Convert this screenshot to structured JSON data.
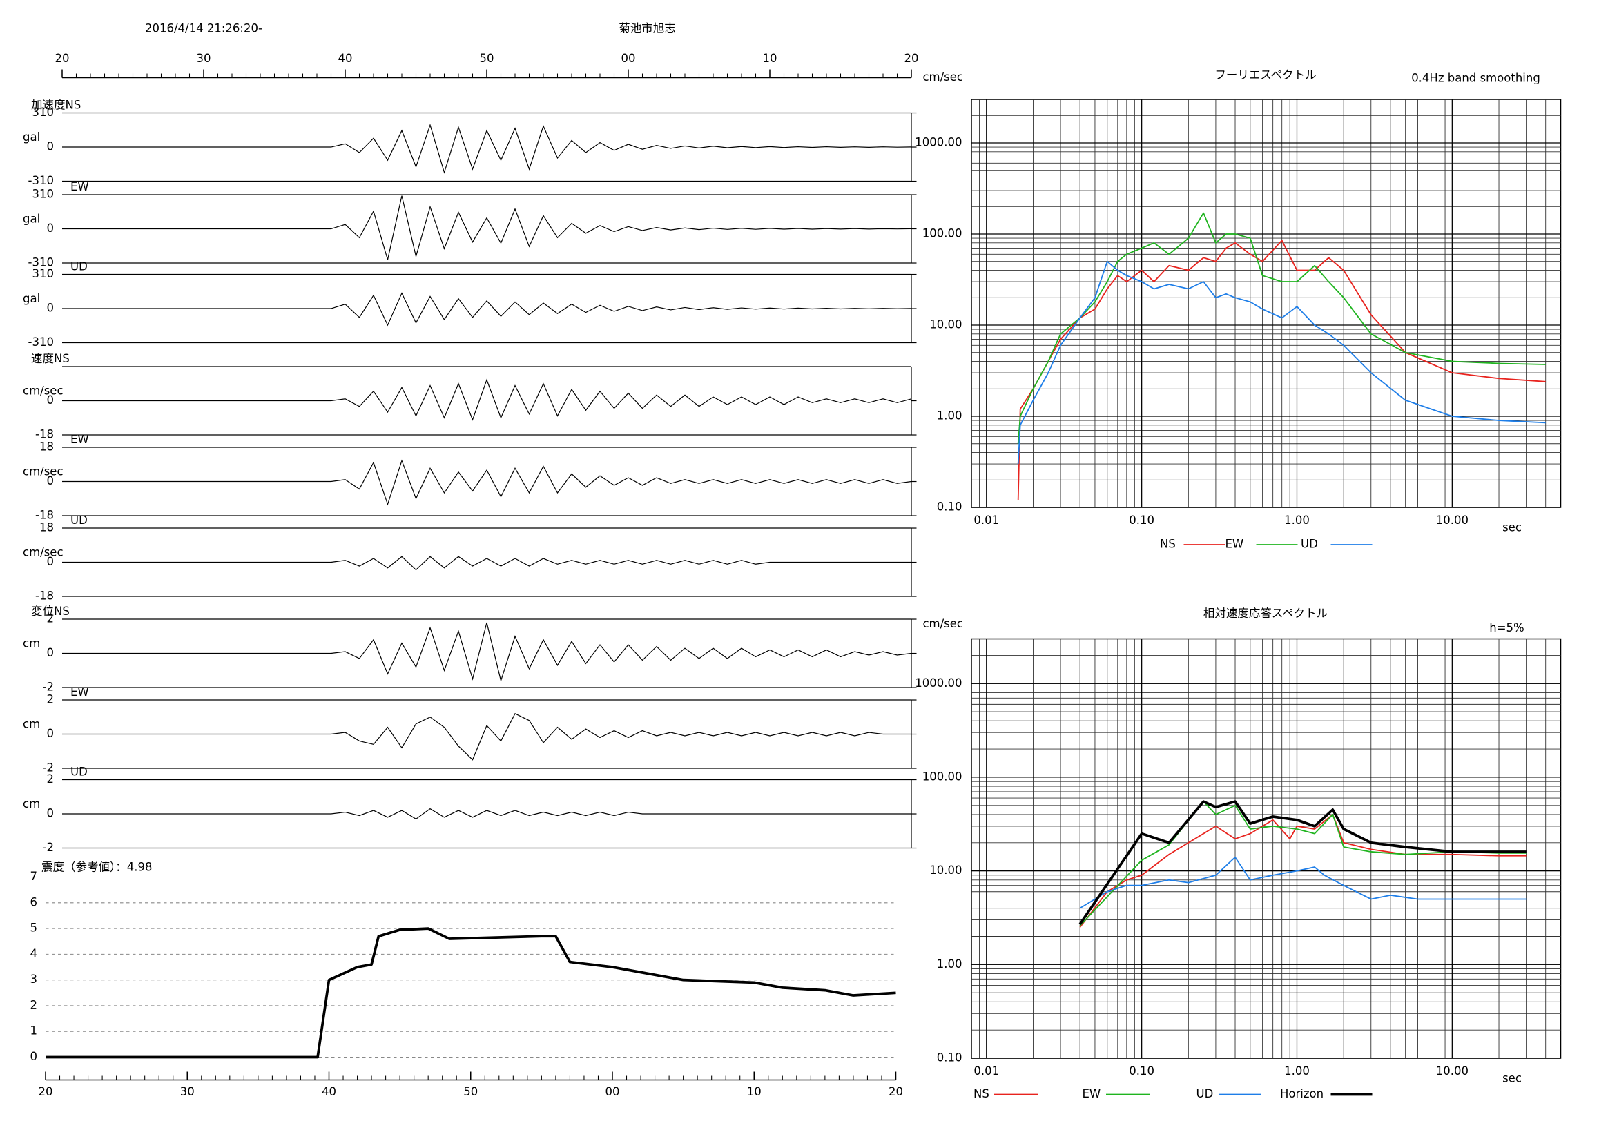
{
  "header": {
    "datetime": "2016/4/14 21:26:20-",
    "station": "菊池市旭志"
  },
  "chart_data": [
    {
      "type": "waveform",
      "xlim": [
        20,
        80
      ],
      "xticks": [
        20,
        30,
        40,
        50,
        {
          "value": 60,
          "label": "00"
        },
        {
          "value": 70,
          "label": "10"
        },
        {
          "value": 80,
          "label": "20"
        }
      ],
      "color": "#000000",
      "x": [
        20,
        39,
        40,
        41,
        42,
        43,
        44,
        45,
        46,
        47,
        48,
        49,
        50,
        51,
        52,
        53,
        54,
        55,
        56,
        57,
        58,
        59,
        60,
        61,
        62,
        63,
        64,
        65,
        66,
        67,
        68,
        69,
        70,
        71,
        72,
        73,
        74,
        75,
        76,
        77,
        78,
        79,
        80
      ],
      "panels": [
        {
          "label": "加速度NS",
          "unit": "gal",
          "ylim": [
            -310,
            310
          ],
          "yticks": [
            -310,
            0,
            310
          ],
          "values": [
            0,
            0,
            30,
            -50,
            80,
            -120,
            150,
            -180,
            200,
            -230,
            180,
            -200,
            150,
            -120,
            170,
            -200,
            190,
            -100,
            60,
            -50,
            40,
            -30,
            25,
            -20,
            15,
            -12,
            10,
            -8,
            8,
            -6,
            5,
            -5,
            4,
            -4,
            3,
            -3,
            3,
            -2,
            2,
            -2,
            2,
            -1,
            1
          ]
        },
        {
          "label": "EW",
          "unit": "gal",
          "ylim": [
            -310,
            310
          ],
          "yticks": [
            -310,
            0,
            310
          ],
          "values": [
            0,
            0,
            40,
            -80,
            160,
            -280,
            300,
            -250,
            200,
            -180,
            150,
            -120,
            100,
            -130,
            180,
            -160,
            120,
            -80,
            50,
            -40,
            30,
            -25,
            20,
            -15,
            12,
            -10,
            8,
            -7,
            6,
            -5,
            5,
            -4,
            4,
            -3,
            3,
            -3,
            2,
            -2,
            2,
            -2,
            1,
            -1,
            1
          ]
        },
        {
          "label": "UD",
          "unit": "gal",
          "ylim": [
            -310,
            310
          ],
          "yticks": [
            -310,
            0,
            310
          ],
          "values": [
            0,
            0,
            40,
            -80,
            120,
            -150,
            140,
            -130,
            110,
            -100,
            90,
            -80,
            70,
            -70,
            60,
            -55,
            50,
            -45,
            40,
            -35,
            30,
            -25,
            20,
            -18,
            15,
            -12,
            10,
            -9,
            8,
            -7,
            6,
            -5,
            5,
            -4,
            4,
            -3,
            3,
            -3,
            2,
            -2,
            2,
            -1,
            1
          ]
        },
        {
          "label": "速度NS",
          "unit": "cm/sec",
          "ylim": [
            -18,
            18
          ],
          "yticks": [
            -18,
            0
          ],
          "values": [
            0,
            0,
            1,
            -3,
            5,
            -6,
            7,
            -8,
            8,
            -9,
            9,
            -10,
            11,
            -9,
            8,
            -7,
            9,
            -8,
            6,
            -5,
            5,
            -4,
            4,
            -4,
            3,
            -3,
            3,
            -3,
            2,
            -2,
            2,
            -2,
            2,
            -2,
            2,
            -1,
            1,
            -1,
            1,
            -1,
            1,
            -1,
            1
          ]
        },
        {
          "label": "EW",
          "unit": "cm/sec",
          "ylim": [
            -18,
            18
          ],
          "yticks": [
            -18,
            0,
            18
          ],
          "values": [
            0,
            0,
            1,
            -4,
            10,
            -12,
            11,
            -9,
            7,
            -6,
            5,
            -5,
            6,
            -8,
            7,
            -6,
            8,
            -6,
            4,
            -3,
            3,
            -2,
            2,
            -2,
            2,
            -1,
            1,
            -1,
            1,
            -1,
            1,
            -1,
            1,
            -1,
            1,
            -1,
            1,
            -1,
            1,
            -1,
            1,
            -1,
            0
          ]
        },
        {
          "label": "UD",
          "unit": "cm/sec",
          "ylim": [
            -18,
            18
          ],
          "yticks": [
            -18,
            0,
            18
          ],
          "values": [
            0,
            0,
            1,
            -2,
            2,
            -3,
            3,
            -4,
            3,
            -3,
            3,
            -2,
            2,
            -2,
            2,
            -2,
            2,
            -1,
            1,
            -1,
            1,
            -1,
            1,
            -1,
            1,
            -1,
            1,
            -1,
            1,
            -1,
            1,
            -1,
            0,
            0,
            0,
            0,
            0,
            0,
            0,
            0,
            0,
            0,
            0
          ]
        },
        {
          "label": "変位NS",
          "unit": "cm",
          "ylim": [
            -2,
            2
          ],
          "yticks": [
            -2,
            0,
            2
          ],
          "values": [
            0,
            0,
            0.1,
            -0.3,
            0.8,
            -1.2,
            0.6,
            -0.8,
            1.5,
            -1.0,
            1.3,
            -1.5,
            1.8,
            -1.6,
            1.0,
            -0.9,
            0.8,
            -0.7,
            0.7,
            -0.6,
            0.5,
            -0.5,
            0.5,
            -0.4,
            0.4,
            -0.4,
            0.3,
            -0.3,
            0.3,
            -0.3,
            0.3,
            -0.2,
            0.2,
            -0.2,
            0.2,
            -0.2,
            0.2,
            -0.2,
            0.1,
            -0.1,
            0.1,
            -0.1,
            0
          ]
        },
        {
          "label": "EW",
          "unit": "cm",
          "ylim": [
            -2,
            2
          ],
          "yticks": [
            -2,
            0,
            2
          ],
          "values": [
            0,
            0,
            0.1,
            -0.4,
            -0.6,
            0.4,
            -0.8,
            0.6,
            1.0,
            0.4,
            -0.7,
            -1.5,
            0.5,
            -0.4,
            1.2,
            0.8,
            -0.5,
            0.4,
            -0.3,
            0.3,
            -0.2,
            0.2,
            -0.2,
            0.2,
            -0.1,
            0.1,
            -0.1,
            0.1,
            -0.1,
            0.1,
            -0.1,
            0.1,
            -0.1,
            0.1,
            -0.1,
            0.1,
            -0.1,
            0.1,
            -0.1,
            0.1,
            0,
            0,
            0
          ]
        },
        {
          "label": "UD",
          "unit": "cm",
          "ylim": [
            -2,
            2
          ],
          "yticks": [
            -2,
            0,
            2
          ],
          "values": [
            0,
            0,
            0.1,
            -0.1,
            0.2,
            -0.2,
            0.2,
            -0.3,
            0.3,
            -0.2,
            0.2,
            -0.2,
            0.2,
            -0.1,
            0.2,
            -0.1,
            0.1,
            -0.1,
            0.1,
            -0.1,
            0.1,
            -0.1,
            0.1,
            0,
            0,
            0,
            0,
            0,
            0,
            0,
            0,
            0,
            0,
            0,
            0,
            0,
            0,
            0,
            0,
            0,
            0,
            0,
            0
          ]
        }
      ]
    },
    {
      "type": "line",
      "title": "震度（参考値）：4.98",
      "xlim": [
        20,
        80
      ],
      "xticks": [
        20,
        30,
        40,
        50,
        {
          "value": 60,
          "label": "00"
        },
        {
          "value": 70,
          "label": "10"
        },
        {
          "value": 80,
          "label": "20"
        }
      ],
      "ylim": [
        0,
        7
      ],
      "yticks": [
        0,
        1,
        2,
        3,
        4,
        5,
        6,
        7
      ],
      "grid": true,
      "color": "#000000",
      "x": [
        20,
        39.2,
        39.6,
        40,
        42,
        43,
        43.5,
        45,
        47,
        48.5,
        55,
        56,
        57,
        60,
        62,
        65,
        70,
        72,
        75,
        77,
        80
      ],
      "values": [
        0,
        0,
        1.5,
        3,
        3.5,
        3.6,
        4.7,
        4.95,
        5.0,
        4.6,
        4.7,
        4.7,
        3.7,
        3.5,
        3.3,
        3.0,
        2.9,
        2.7,
        2.6,
        2.4,
        2.5
      ]
    },
    {
      "type": "line",
      "title": "フーリエスペクトル",
      "subtitle": "0.4Hz band smoothing",
      "ylabel": "cm/sec",
      "xlabel": "sec",
      "log_x": true,
      "log_y": true,
      "grid": true,
      "xlim": [
        0.008,
        50
      ],
      "ylim": [
        0.1,
        3000
      ],
      "xticks": [
        0.01,
        {
          "value": 0.1,
          "label": "0.10"
        },
        {
          "value": 1,
          "label": "1.00"
        },
        {
          "value": 10,
          "label": "10.00"
        }
      ],
      "yticks": [
        {
          "value": 0.1,
          "label": "0.10"
        },
        {
          "value": 1,
          "label": "1.00"
        },
        {
          "value": 10,
          "label": "10.00"
        },
        {
          "value": 100,
          "label": "100.00"
        },
        {
          "value": 1000,
          "label": "1000.00"
        }
      ],
      "series": [
        {
          "name": "NS",
          "color": "#e8231e",
          "x": [
            0.016,
            0.0165,
            0.02,
            0.025,
            0.03,
            0.04,
            0.05,
            0.06,
            0.07,
            0.08,
            0.1,
            0.12,
            0.15,
            0.2,
            0.25,
            0.3,
            0.35,
            0.4,
            0.5,
            0.6,
            0.8,
            1.0,
            1.3,
            1.6,
            2,
            3,
            5,
            10,
            20,
            40
          ],
          "values": [
            0.12,
            1.2,
            2,
            4,
            7,
            12,
            15,
            25,
            35,
            30,
            40,
            30,
            45,
            40,
            55,
            50,
            70,
            80,
            60,
            50,
            85,
            40,
            40,
            55,
            40,
            13,
            5,
            3,
            2.6,
            2.4
          ]
        },
        {
          "name": "EW",
          "color": "#1fb41f",
          "x": [
            0.016,
            0.0165,
            0.02,
            0.025,
            0.03,
            0.04,
            0.05,
            0.06,
            0.07,
            0.08,
            0.1,
            0.12,
            0.15,
            0.2,
            0.25,
            0.3,
            0.35,
            0.4,
            0.5,
            0.6,
            0.8,
            1.0,
            1.3,
            1.6,
            2,
            3,
            5,
            10,
            20,
            40
          ],
          "values": [
            0.5,
            1,
            2,
            4,
            8,
            12,
            18,
            30,
            50,
            60,
            70,
            80,
            60,
            90,
            170,
            80,
            100,
            100,
            90,
            35,
            30,
            30,
            45,
            30,
            20,
            8,
            5,
            4,
            3.8,
            3.7
          ]
        },
        {
          "name": "UD",
          "color": "#1e7ee8",
          "x": [
            0.016,
            0.0165,
            0.02,
            0.025,
            0.03,
            0.04,
            0.05,
            0.06,
            0.07,
            0.08,
            0.1,
            0.12,
            0.15,
            0.2,
            0.25,
            0.3,
            0.35,
            0.4,
            0.5,
            0.6,
            0.8,
            1.0,
            1.3,
            1.6,
            2,
            3,
            5,
            10,
            20,
            40
          ],
          "values": [
            0.3,
            0.8,
            1.5,
            3,
            6,
            12,
            20,
            50,
            40,
            35,
            30,
            25,
            28,
            25,
            30,
            20,
            22,
            20,
            18,
            15,
            12,
            16,
            10,
            8,
            6,
            3,
            1.5,
            1.0,
            0.9,
            0.85
          ]
        }
      ]
    },
    {
      "type": "line",
      "title": "相対速度応答スペクトル",
      "annotation": "h=5%",
      "ylabel": "cm/sec",
      "xlabel": "sec",
      "log_x": true,
      "log_y": true,
      "grid": true,
      "xlim": [
        0.008,
        50
      ],
      "ylim": [
        0.1,
        3000
      ],
      "xticks": [
        0.01,
        {
          "value": 0.1,
          "label": "0.10"
        },
        {
          "value": 1,
          "label": "1.00"
        },
        {
          "value": 10,
          "label": "10.00"
        }
      ],
      "yticks": [
        {
          "value": 0.1,
          "label": "0.10"
        },
        {
          "value": 1,
          "label": "1.00"
        },
        {
          "value": 10,
          "label": "10.00"
        },
        {
          "value": 100,
          "label": "100.00"
        },
        {
          "value": 1000,
          "label": "1000.00"
        }
      ],
      "series": [
        {
          "name": "NS",
          "color": "#e8231e",
          "x": [
            0.04,
            0.06,
            0.08,
            0.1,
            0.15,
            0.2,
            0.3,
            0.4,
            0.5,
            0.7,
            0.9,
            1.0,
            1.3,
            1.7,
            2,
            3,
            5,
            10,
            20,
            30
          ],
          "values": [
            2.5,
            6,
            8,
            9,
            15,
            20,
            30,
            22,
            25,
            35,
            22,
            30,
            28,
            40,
            20,
            17,
            15,
            15,
            14.5,
            14.5
          ]
        },
        {
          "name": "EW",
          "color": "#1fb41f",
          "x": [
            0.04,
            0.1,
            0.15,
            0.25,
            0.3,
            0.4,
            0.5,
            0.7,
            1,
            1.3,
            1.7,
            2,
            3,
            5,
            10,
            20,
            30
          ],
          "values": [
            2.6,
            13,
            19,
            55,
            40,
            50,
            28,
            30,
            28,
            25,
            40,
            18,
            16,
            15,
            16,
            15.5,
            15.5
          ]
        },
        {
          "name": "UD",
          "color": "#1e7ee8",
          "x": [
            0.04,
            0.06,
            0.08,
            0.1,
            0.15,
            0.2,
            0.3,
            0.4,
            0.5,
            0.7,
            1,
            1.3,
            1.5,
            2,
            3,
            4,
            6,
            10,
            30
          ],
          "values": [
            4,
            6,
            7,
            7,
            8,
            7.5,
            9,
            14,
            8,
            9,
            10,
            11,
            9,
            7,
            5,
            5.5,
            5,
            5,
            5
          ]
        },
        {
          "name": "Horizon",
          "color": "#000000",
          "linewidth": 2.5,
          "x": [
            0.04,
            0.1,
            0.15,
            0.25,
            0.3,
            0.4,
            0.5,
            0.7,
            1,
            1.3,
            1.7,
            2,
            3,
            5,
            10,
            20,
            30
          ],
          "values": [
            2.7,
            25,
            20,
            55,
            48,
            55,
            32,
            38,
            35,
            30,
            45,
            28,
            20,
            18,
            16,
            16,
            16
          ]
        }
      ]
    }
  ]
}
